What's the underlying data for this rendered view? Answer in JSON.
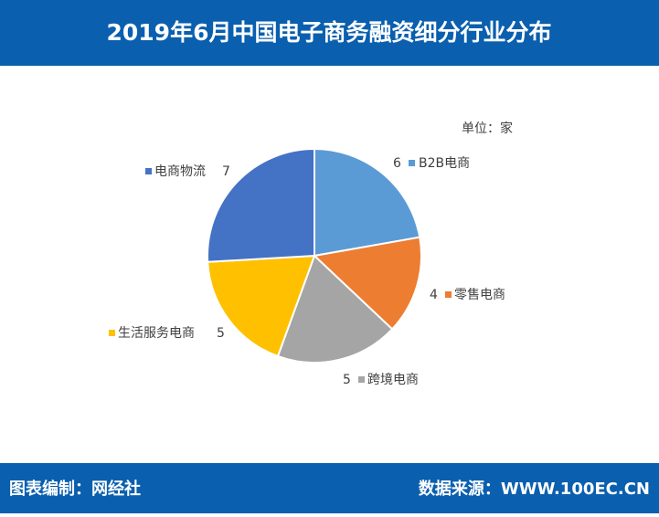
{
  "chart_data": {
    "type": "pie",
    "title": "2019年6月中国电子商务融资细分行业分布",
    "unit": "单位：家",
    "categories": [
      "B2B电商",
      "零售电商",
      "跨境电商",
      "生活服务电商",
      "电商物流"
    ],
    "values": [
      6,
      4,
      5,
      5,
      7
    ],
    "colors": [
      "#5b9bd5",
      "#ed7d31",
      "#a5a5a5",
      "#ffc000",
      "#4472c4"
    ]
  },
  "footer": {
    "left": "图表编制：网经社",
    "right": "数据来源：WWW.100EC.CN"
  }
}
